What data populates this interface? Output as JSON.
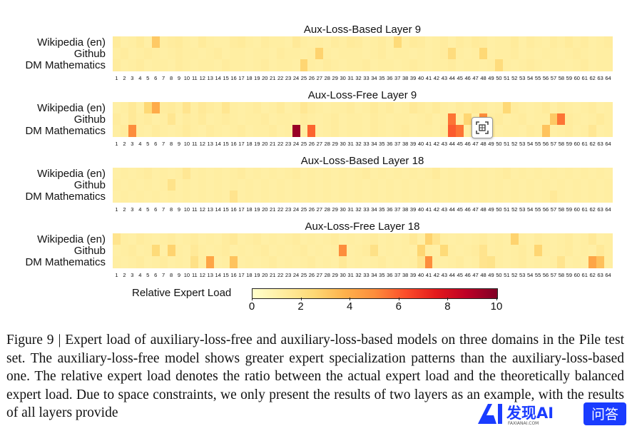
{
  "panels": [
    {
      "title": "Aux-Loss-Based Layer 9",
      "rows": [
        "Wikipedia (en)",
        "Github",
        "DM Mathematics"
      ],
      "values": [
        [
          1.4,
          1.1,
          1.2,
          1.4,
          1.1,
          3.0,
          1.2,
          1.3,
          1.4,
          1.2,
          1.1,
          1.4,
          1.2,
          1.1,
          1.1,
          1.3,
          1.4,
          1.2,
          1.1,
          1.3,
          1.2,
          1.2,
          1.1,
          1.5,
          1.2,
          1.1,
          1.2,
          1.1,
          1.3,
          1.2,
          1.4,
          1.3,
          1.1,
          1.2,
          1.3,
          1.1,
          2.4,
          1.2,
          1.4,
          1.3,
          1.1,
          1.2,
          1.3,
          1.1,
          1.3,
          1.2,
          1.4,
          1.3,
          1.1,
          1.2,
          1.2,
          1.4,
          1.1,
          1.3,
          1.2,
          1.1,
          1.3,
          1.2,
          1.4,
          1.2,
          1.3,
          1.1,
          1.2,
          1.3
        ],
        [
          1.2,
          1.3,
          1.1,
          1.2,
          1.3,
          1.2,
          1.1,
          1.2,
          1.3,
          1.2,
          1.2,
          1.1,
          1.2,
          1.3,
          1.1,
          1.2,
          1.2,
          1.1,
          1.2,
          1.2,
          1.1,
          1.3,
          1.2,
          1.2,
          1.1,
          1.2,
          2.7,
          1.2,
          1.1,
          1.2,
          1.2,
          1.2,
          1.1,
          1.2,
          1.3,
          1.1,
          1.2,
          1.2,
          1.1,
          1.2,
          1.1,
          1.2,
          1.3,
          2.3,
          1.2,
          1.1,
          1.2,
          2.5,
          1.1,
          1.2,
          1.2,
          1.3,
          1.1,
          1.2,
          1.1,
          1.2,
          1.2,
          1.1,
          1.2,
          1.3,
          1.2,
          1.1,
          1.2,
          1.2
        ],
        [
          1.3,
          1.1,
          1.2,
          1.3,
          1.1,
          1.2,
          1.2,
          1.1,
          1.3,
          1.2,
          1.1,
          1.2,
          1.2,
          1.1,
          1.3,
          1.2,
          1.2,
          1.1,
          1.2,
          1.3,
          1.1,
          1.2,
          1.2,
          1.1,
          2.6,
          1.2,
          1.1,
          1.3,
          1.2,
          1.1,
          1.2,
          1.2,
          1.3,
          1.1,
          1.2,
          1.2,
          1.1,
          1.2,
          1.3,
          1.2,
          1.1,
          1.2,
          1.2,
          1.3,
          1.1,
          1.2,
          1.2,
          1.1,
          1.2,
          2.3,
          1.2,
          1.1,
          1.2,
          1.3,
          1.2,
          1.1,
          1.2,
          1.2,
          1.1,
          1.2,
          1.3,
          1.1,
          1.2,
          1.2
        ]
      ]
    },
    {
      "title": "Aux-Loss-Free Layer 9",
      "rows": [
        "Wikipedia (en)",
        "Github",
        "DM Mathematics"
      ],
      "values": [
        [
          1.1,
          1.2,
          1.5,
          1.1,
          2.5,
          4.0,
          1.3,
          1.4,
          1.2,
          1.8,
          1.2,
          1.5,
          1.3,
          1.2,
          1.7,
          1.2,
          1.1,
          1.2,
          1.3,
          1.1,
          1.2,
          1.4,
          1.1,
          1.2,
          1.6,
          1.3,
          1.2,
          1.1,
          1.2,
          1.2,
          1.3,
          1.1,
          1.2,
          1.4,
          1.2,
          1.3,
          1.1,
          1.2,
          1.5,
          1.3,
          1.2,
          1.4,
          1.2,
          1.1,
          1.3,
          1.2,
          1.4,
          1.3,
          1.1,
          1.2,
          2.5,
          1.3,
          1.2,
          1.1,
          1.2,
          1.4,
          1.1,
          1.3,
          1.2,
          1.1,
          1.2,
          1.3,
          1.1,
          1.2
        ],
        [
          1.3,
          1.1,
          1.5,
          1.2,
          1.3,
          1.1,
          1.2,
          1.7,
          1.1,
          1.3,
          1.2,
          1.4,
          1.1,
          1.2,
          1.3,
          1.2,
          1.1,
          1.2,
          1.2,
          1.3,
          1.1,
          1.2,
          1.2,
          1.1,
          1.3,
          1.2,
          1.1,
          1.2,
          1.3,
          1.1,
          1.2,
          1.2,
          1.1,
          1.3,
          1.2,
          1.1,
          1.2,
          1.2,
          1.1,
          1.2,
          1.3,
          1.1,
          1.2,
          5.5,
          1.2,
          2.6,
          1.1,
          5.0,
          1.2,
          1.3,
          1.1,
          1.2,
          1.3,
          1.1,
          1.2,
          1.2,
          3.0,
          5.5,
          1.3,
          1.2,
          1.1,
          1.2,
          1.4,
          1.2
        ],
        [
          1.2,
          1.3,
          5.0,
          1.2,
          1.1,
          1.3,
          1.2,
          1.1,
          1.2,
          1.4,
          1.2,
          1.1,
          1.3,
          1.2,
          1.1,
          1.2,
          1.3,
          1.1,
          1.2,
          1.2,
          1.3,
          1.1,
          1.2,
          9.5,
          1.2,
          5.8,
          1.1,
          1.2,
          1.3,
          1.1,
          1.2,
          1.2,
          1.1,
          1.3,
          1.2,
          1.1,
          1.2,
          1.3,
          1.1,
          1.2,
          1.2,
          1.1,
          1.3,
          6.0,
          5.5,
          1.2,
          1.1,
          1.2,
          1.3,
          1.1,
          1.2,
          1.2,
          1.1,
          1.3,
          1.2,
          3.2,
          1.1,
          1.2,
          1.3,
          1.1,
          1.2,
          1.6,
          1.1,
          1.2
        ]
      ]
    },
    {
      "title": "Aux-Loss-Based Layer 18",
      "rows": [
        "Wikipedia (en)",
        "Github",
        "DM Mathematics"
      ],
      "values": [
        [
          1.1,
          1.2,
          1.1,
          1.2,
          1.3,
          1.1,
          1.2,
          1.1,
          1.2,
          1.6,
          1.1,
          1.2,
          1.1,
          1.2,
          1.1,
          1.2,
          1.3,
          1.1,
          1.2,
          1.1,
          1.2,
          1.1,
          1.2,
          1.3,
          1.1,
          1.2,
          1.1,
          1.2,
          1.1,
          1.2,
          1.1,
          1.2,
          1.3,
          1.1,
          1.2,
          1.1,
          1.2,
          1.1,
          1.2,
          1.1,
          1.2,
          1.4,
          1.1,
          1.2,
          1.1,
          1.2,
          1.1,
          1.2,
          1.1,
          1.2,
          1.3,
          1.1,
          1.2,
          1.1,
          1.2,
          1.1,
          1.2,
          1.1,
          1.2,
          1.1,
          1.2,
          1.1,
          1.2,
          1.1
        ],
        [
          1.2,
          1.1,
          1.2,
          1.1,
          1.2,
          1.1,
          1.2,
          1.9,
          1.1,
          1.2,
          1.1,
          1.2,
          1.1,
          1.2,
          1.1,
          1.2,
          1.1,
          1.2,
          1.1,
          1.2,
          1.1,
          1.2,
          1.1,
          1.2,
          1.1,
          1.2,
          1.1,
          1.2,
          1.1,
          1.2,
          1.1,
          1.2,
          1.1,
          1.2,
          1.1,
          1.2,
          1.1,
          1.2,
          1.1,
          1.2,
          1.1,
          1.2,
          1.1,
          1.2,
          1.1,
          1.2,
          1.1,
          1.2,
          1.1,
          1.2,
          1.1,
          1.2,
          1.1,
          1.2,
          1.1,
          1.2,
          1.1,
          1.2,
          1.1,
          1.2,
          1.1,
          1.2,
          1.1,
          1.2
        ],
        [
          1.1,
          1.2,
          1.1,
          1.2,
          1.1,
          1.2,
          1.1,
          1.2,
          1.1,
          1.2,
          1.1,
          1.2,
          1.1,
          1.2,
          1.1,
          1.8,
          1.1,
          1.2,
          1.1,
          1.2,
          1.1,
          1.2,
          1.1,
          1.2,
          1.1,
          1.2,
          1.1,
          1.2,
          1.1,
          1.2,
          1.1,
          1.2,
          1.1,
          1.2,
          1.1,
          1.2,
          1.1,
          1.2,
          1.1,
          1.2,
          1.1,
          1.2,
          1.1,
          1.2,
          1.1,
          1.2,
          1.1,
          1.2,
          1.1,
          1.2,
          1.1,
          1.2,
          1.1,
          1.2,
          1.1,
          1.2,
          1.5,
          1.2,
          1.1,
          1.2,
          1.1,
          1.2,
          1.1,
          1.2
        ]
      ]
    },
    {
      "title": "Aux-Loss-Free Layer 18",
      "rows": [
        "Wikipedia (en)",
        "Github",
        "DM Mathematics"
      ],
      "values": [
        [
          1.8,
          1.2,
          1.1,
          1.3,
          1.2,
          1.1,
          1.2,
          1.3,
          1.1,
          1.2,
          1.3,
          1.1,
          1.2,
          1.1,
          1.3,
          1.5,
          1.1,
          1.2,
          1.3,
          1.1,
          1.2,
          1.1,
          1.2,
          1.3,
          1.1,
          1.2,
          1.1,
          1.2,
          1.3,
          1.1,
          1.2,
          1.1,
          1.2,
          1.3,
          1.1,
          1.2,
          1.1,
          1.2,
          1.5,
          1.1,
          2.7,
          1.8,
          1.2,
          1.1,
          1.2,
          1.1,
          1.2,
          1.3,
          1.1,
          1.2,
          1.1,
          2.7,
          1.2,
          1.1,
          1.3,
          1.2,
          1.1,
          1.2,
          1.3,
          1.1,
          1.2,
          1.5,
          1.1,
          1.2
        ],
        [
          1.1,
          1.2,
          1.3,
          1.1,
          1.2,
          2.4,
          1.1,
          2.7,
          1.2,
          1.1,
          1.5,
          1.2,
          1.1,
          1.2,
          1.3,
          1.1,
          1.2,
          1.1,
          1.2,
          1.3,
          1.1,
          1.2,
          1.1,
          1.2,
          1.3,
          1.1,
          1.2,
          1.1,
          1.2,
          5.0,
          1.1,
          1.2,
          1.3,
          2.0,
          1.1,
          1.2,
          1.1,
          1.2,
          1.1,
          2.6,
          1.2,
          1.1,
          2.4,
          1.2,
          1.1,
          1.2,
          1.3,
          1.8,
          1.1,
          1.2,
          1.1,
          1.2,
          1.3,
          1.1,
          2.6,
          1.2,
          1.1,
          1.2,
          1.3,
          1.1,
          1.2,
          1.1,
          1.5,
          1.2
        ],
        [
          1.2,
          1.1,
          1.2,
          1.3,
          1.1,
          1.2,
          1.3,
          1.1,
          1.2,
          1.1,
          2.0,
          1.2,
          4.2,
          1.1,
          1.2,
          3.2,
          1.1,
          1.2,
          1.1,
          1.2,
          1.3,
          1.1,
          1.2,
          1.1,
          1.2,
          1.3,
          1.1,
          1.2,
          1.1,
          1.5,
          1.1,
          1.2,
          1.1,
          1.2,
          1.3,
          1.1,
          1.2,
          1.1,
          1.2,
          1.8,
          5.0,
          1.2,
          1.1,
          1.2,
          1.3,
          1.1,
          1.2,
          1.8,
          1.9,
          1.2,
          1.1,
          1.2,
          1.3,
          1.1,
          1.2,
          1.1,
          1.2,
          1.8,
          1.1,
          1.2,
          1.1,
          4.2,
          3.3,
          1.2
        ]
      ]
    }
  ],
  "colorbar": {
    "label": "Relative Expert Load",
    "min": 0,
    "max": 10,
    "ticks": [
      "0",
      "2",
      "4",
      "6",
      "8",
      "10"
    ],
    "colors": [
      "#ffffcc",
      "#ffeda0",
      "#fed976",
      "#feb24c",
      "#fd8d3c",
      "#fc4e2a",
      "#e31a1c",
      "#bd0026",
      "#800026"
    ]
  },
  "expert_ids": [
    "1",
    "2",
    "3",
    "4",
    "5",
    "6",
    "7",
    "8",
    "9",
    "10",
    "11",
    "12",
    "13",
    "14",
    "15",
    "16",
    "17",
    "18",
    "19",
    "20",
    "21",
    "22",
    "23",
    "24",
    "25",
    "26",
    "27",
    "28",
    "29",
    "30",
    "31",
    "32",
    "33",
    "34",
    "35",
    "36",
    "37",
    "38",
    "39",
    "40",
    "41",
    "42",
    "43",
    "44",
    "45",
    "46",
    "47",
    "48",
    "49",
    "50",
    "51",
    "52",
    "53",
    "54",
    "55",
    "56",
    "57",
    "58",
    "59",
    "60",
    "61",
    "62",
    "63",
    "64"
  ],
  "caption": "Figure 9 | Expert load of auxiliary-loss-free and auxiliary-loss-based models on three domains in the Pile test set. The auxiliary-loss-free model shows greater expert specialization patterns than the auxiliary-loss-based one. The relative expert load denotes the ratio between the actual expert load and the theoretically balanced expert load. Due to space constraints, we only present the results of two layers as an example, with the results of all layers provide",
  "watermark": {
    "brand": "发现AI",
    "sub": "FAXIANAI.COM",
    "button": "问答",
    "brand_color": "#1a3cff"
  }
}
